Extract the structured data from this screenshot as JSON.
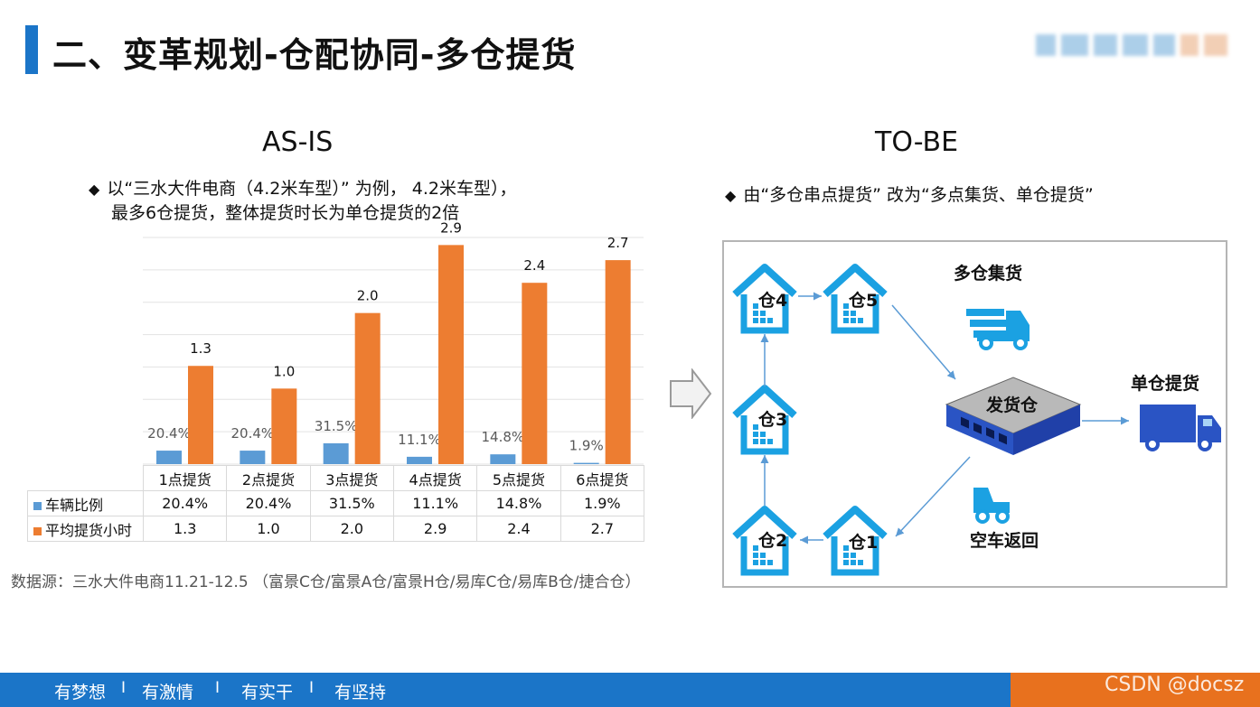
{
  "page": {
    "title": "二、变革规划-仓配协同-多仓提货",
    "as_is_heading": "AS-IS",
    "to_be_heading": "TO-BE",
    "as_is_bullet_line1": "以“三水大件电商（4.2米车型）” 为例， 4.2米车型），",
    "as_is_bullet_line2": "最多6仓提货，整体提货时长为单仓提货的2倍",
    "to_be_bullet": "由“多仓串点提货” 改为“多点集货、单仓提货”",
    "source": "数据源：三水大件电商11.21-12.5  （富景C仓/富景A仓/富景H仓/易库C仓/易库B仓/捷合仓）",
    "bullet_symbol": "◆"
  },
  "diagram": {
    "warehouses": [
      "仓4",
      "仓5",
      "仓3",
      "仓2",
      "仓1"
    ],
    "hub": "发货仓",
    "multi_collect": "多仓集货",
    "single_pickup": "单仓提货",
    "empty_return": "空车返回"
  },
  "footer": {
    "mottos": [
      "有梦想",
      "有激情",
      "有实干",
      "有坚持"
    ],
    "separator": "I",
    "watermark": "CSDN @docsz"
  },
  "colors": {
    "blue": "#5b9bd5",
    "orange": "#ed7d31",
    "brand": "#1b75c8",
    "accent": "#e8711e"
  },
  "chart_data": {
    "type": "bar",
    "categories": [
      "1点提货",
      "2点提货",
      "3点提货",
      "4点提货",
      "5点提货",
      "6点提货"
    ],
    "series": [
      {
        "name": "车辆比例",
        "values": [
          0.204,
          0.204,
          0.315,
          0.111,
          0.148,
          0.019
        ],
        "labels": [
          "20.4%",
          "20.4%",
          "31.5%",
          "11.1%",
          "14.8%",
          "1.9%"
        ]
      },
      {
        "name": "平均提货小时",
        "values": [
          1.3,
          1.0,
          2.0,
          2.9,
          2.4,
          2.7
        ],
        "labels": [
          "1.3",
          "1.0",
          "2.0",
          "2.9",
          "2.4",
          "2.7"
        ]
      }
    ],
    "ylim": [
      0,
      3.0
    ],
    "grid": true,
    "legend": "data-table"
  }
}
